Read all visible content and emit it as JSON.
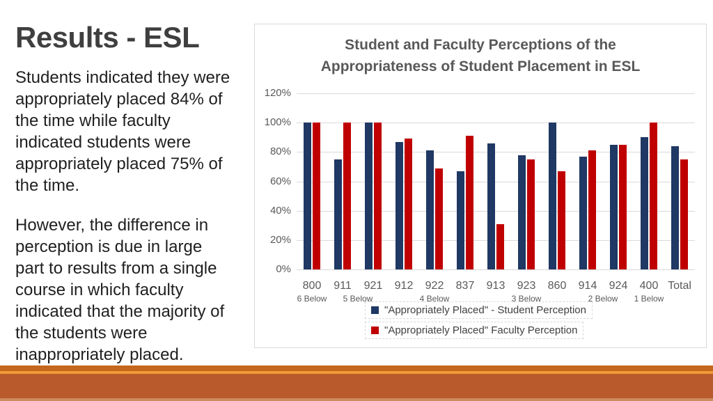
{
  "slide": {
    "title": "Results - ESL",
    "body_paragraph_1": "Students indicated they were\nappropriately placed 84% of\nthe time while faculty\nindicated students were\nappropriately placed 75% of\nthe time.",
    "body_paragraph_2": "However, the difference in\nperception is due in large\npart to results from a single\ncourse in which faculty\nindicated that the majority of\nthe students were\ninappropriately placed.",
    "accent_colors": {
      "stripe_dark": "#C4661C",
      "stripe_bright": "#F09B35",
      "bar_body": "#B95A2D",
      "bar_bottom_edge": "#CE8A60"
    },
    "title_color": "#3F3F3F"
  },
  "chart_data": {
    "type": "bar",
    "title": "Student and Faculty Perceptions of the\nAppropriateness of Student Placement in ESL",
    "categories": [
      "800",
      "911",
      "921",
      "912",
      "922",
      "837",
      "913",
      "923",
      "860",
      "914",
      "924",
      "400",
      "Total"
    ],
    "series": [
      {
        "name": "\"Appropriately Placed\" - Student Perception",
        "color": "#1F3864",
        "values": [
          100,
          75,
          100,
          87,
          81,
          67,
          86,
          78,
          100,
          77,
          85,
          90,
          84
        ]
      },
      {
        "name": "\"Appropriately Placed\" Faculty Perception",
        "color": "#C00000",
        "values": [
          100,
          100,
          100,
          89,
          69,
          91,
          31,
          75,
          67,
          81,
          85,
          100,
          75
        ]
      }
    ],
    "group_labels": [
      {
        "label": "6 Below",
        "start": 0,
        "end": 0
      },
      {
        "label": "5 Below",
        "start": 1,
        "end": 2
      },
      {
        "label": "4 Below",
        "start": 3,
        "end": 5
      },
      {
        "label": "3 Below",
        "start": 6,
        "end": 8
      },
      {
        "label": "2 Below",
        "start": 9,
        "end": 10
      },
      {
        "label": "1 Below",
        "start": 11,
        "end": 11
      }
    ],
    "y_ticks": [
      "0%",
      "20%",
      "40%",
      "60%",
      "80%",
      "100%",
      "120%"
    ],
    "ylim": [
      0,
      120
    ],
    "xlabel": "",
    "ylabel": "",
    "grid": true,
    "legend_position": "bottom",
    "colors": {
      "grid": "#D9D9D9",
      "axis_text": "#595959",
      "title_text": "#595959",
      "border": "#D9D9D9"
    }
  }
}
